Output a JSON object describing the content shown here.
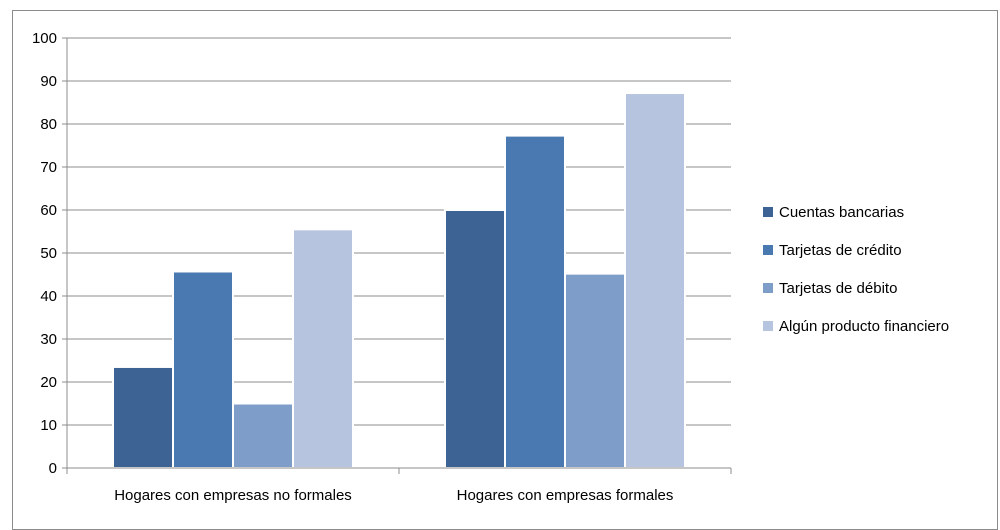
{
  "chart_data": {
    "type": "bar",
    "title": "",
    "xlabel": "",
    "ylabel": "",
    "ylim": [
      0,
      100
    ],
    "yticks": [
      0,
      10,
      20,
      30,
      40,
      50,
      60,
      70,
      80,
      90,
      100
    ],
    "grid": true,
    "legend_position": "right",
    "categories": [
      "Hogares con empresas no formales",
      "Hogares con empresas formales"
    ],
    "series": [
      {
        "name": "Cuentas bancarias",
        "color": "#3d6394",
        "values": [
          23.5,
          60
        ]
      },
      {
        "name": "Tarjetas de crédito",
        "color": "#4a78b0",
        "values": [
          45.7,
          77.3
        ]
      },
      {
        "name": "Tarjetas de débito",
        "color": "#7f9dc9",
        "values": [
          15,
          45.2
        ]
      },
      {
        "name": "Algún producto financiero",
        "color": "#b6c4df",
        "values": [
          55.5,
          87.2
        ]
      }
    ]
  }
}
